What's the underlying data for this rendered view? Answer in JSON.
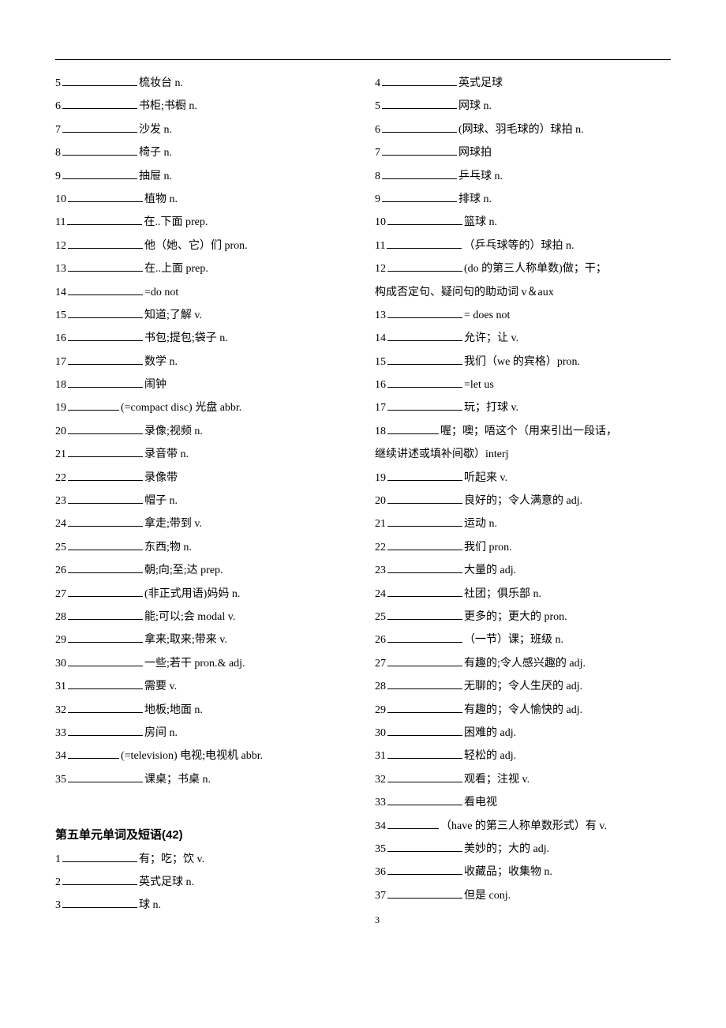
{
  "left": [
    {
      "n": "5",
      "def": "梳妆台 n."
    },
    {
      "n": "6",
      "def": "书柜;书橱 n."
    },
    {
      "n": "7",
      "def": "沙发 n."
    },
    {
      "n": "8",
      "def": "椅子 n."
    },
    {
      "n": "9",
      "def": "抽屉 n."
    },
    {
      "n": "10",
      "def": "植物 n."
    },
    {
      "n": "11",
      "def": "在..下面  prep."
    },
    {
      "n": "12",
      "def": "他（她、它）们 pron."
    },
    {
      "n": "13",
      "def": "在..上面  prep."
    },
    {
      "n": "14",
      "def": "=do not"
    },
    {
      "n": "15",
      "def": "知道;了解  v."
    },
    {
      "n": "16",
      "def": "书包;提包;袋子  n."
    },
    {
      "n": "17",
      "def": "数学  n."
    },
    {
      "n": "18",
      "def": "闹钟"
    },
    {
      "n": "19",
      "def": "(=compact disc)   光盘  abbr.",
      "short": true
    },
    {
      "n": "20",
      "def": "录像;视频  n."
    },
    {
      "n": "21",
      "def": "录音带  n."
    },
    {
      "n": "22",
      "def": "录像带"
    },
    {
      "n": "23",
      "def": "帽子  n."
    },
    {
      "n": "24",
      "def": "拿走;带到  v."
    },
    {
      "n": "25",
      "def": "东西;物  n."
    },
    {
      "n": "26",
      "def": "朝;向;至;达  prep."
    },
    {
      "n": "27",
      "def": "(非正式用语)妈妈  n."
    },
    {
      "n": "28",
      "def": "能;可以;会  modal v."
    },
    {
      "n": "29",
      "def": "拿来;取来;带来  v."
    },
    {
      "n": "30",
      "def": "一些;若干 pron.& adj."
    },
    {
      "n": "31",
      "def": "需要  v."
    },
    {
      "n": "32",
      "def": "地板;地面  n."
    },
    {
      "n": "33",
      "def": "房间  n."
    },
    {
      "n": "34",
      "def": "(=television)   电视;电视机 abbr.",
      "short": true
    },
    {
      "n": "35",
      "def": "课桌；书桌  n."
    }
  ],
  "sectionTitle": "第五单元单词及短语(42)",
  "leftUnit5": [
    {
      "n": "1",
      "def": "有；吃；饮 v."
    },
    {
      "n": "2",
      "def": "英式足球  n."
    },
    {
      "n": "3",
      "def": "球  n."
    }
  ],
  "right": [
    {
      "n": "4",
      "def": "英式足球"
    },
    {
      "n": "5",
      "def": "网球  n."
    },
    {
      "n": "6",
      "def": "(网球、羽毛球的）球拍  n."
    },
    {
      "n": "7",
      "def": "网球拍"
    },
    {
      "n": "8",
      "def": "乒乓球  n."
    },
    {
      "n": "9",
      "def": "排球  n."
    },
    {
      "n": "10",
      "def": "篮球  n."
    },
    {
      "n": "11",
      "def": "（乒乓球等的）球拍  n."
    },
    {
      "n": "12",
      "def": "(do 的第三人称单数)做；干；",
      "cont": "构成否定句、疑问句的助动词 v＆aux"
    },
    {
      "n": "13",
      "def": "= does not"
    },
    {
      "n": "14",
      "def": "允许；让  v."
    },
    {
      "n": "15",
      "def": "我们（we 的宾格）pron."
    },
    {
      "n": "16",
      "def": "=let us"
    },
    {
      "n": "17",
      "def": "玩；打球  v."
    },
    {
      "n": "18",
      "def": "喔；噢；唔这个（用来引出一段话，",
      "short": true,
      "cont": "继续讲述或填补间歇）interj"
    },
    {
      "n": "19",
      "def": "听起来 v."
    },
    {
      "n": "20",
      "def": "良好的；令人满意的 adj."
    },
    {
      "n": "21",
      "def": "运动  n."
    },
    {
      "n": "22",
      "def": "我们 pron."
    },
    {
      "n": "23",
      "def": "大量的 adj."
    },
    {
      "n": "24",
      "def": "社团；俱乐部  n."
    },
    {
      "n": "25",
      "def": "更多的；更大的  pron."
    },
    {
      "n": "26",
      "def": "（一节）课；班级  n."
    },
    {
      "n": "27",
      "def": "有趣的;令人感兴趣的 adj."
    },
    {
      "n": "28",
      "def": "无聊的；令人生厌的 adj."
    },
    {
      "n": "29",
      "def": "有趣的；令人愉快的 adj."
    },
    {
      "n": "30",
      "def": "困难的 adj."
    },
    {
      "n": "31",
      "def": "轻松的 adj."
    },
    {
      "n": "32",
      "def": "观看；注视  v."
    },
    {
      "n": "33",
      "def": "看电视"
    },
    {
      "n": "34",
      "def": "（have 的第三人称单数形式）有 v.",
      "short": true
    },
    {
      "n": "35",
      "def": "美妙的；大的 adj."
    },
    {
      "n": "36",
      "def": "收藏品；收集物  n."
    },
    {
      "n": "37",
      "def": "但是 conj."
    }
  ],
  "pageNumber": "3"
}
